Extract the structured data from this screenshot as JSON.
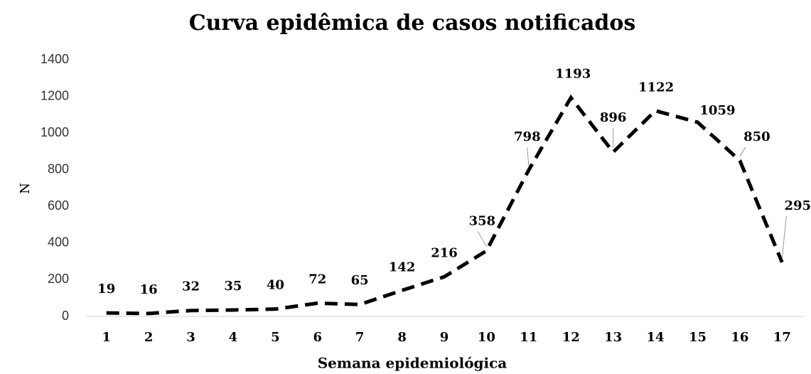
{
  "chart_data": {
    "type": "line",
    "title": "Curva epidêmica de casos notificados",
    "x_label": "Semana epidemiológica",
    "y_label": "N",
    "categories": [
      "1",
      "2",
      "3",
      "4",
      "5",
      "6",
      "7",
      "8",
      "9",
      "10",
      "11",
      "12",
      "13",
      "14",
      "15",
      "16",
      "17"
    ],
    "values": [
      19,
      16,
      32,
      35,
      40,
      72,
      65,
      142,
      216,
      358,
      798,
      1193,
      896,
      1122,
      1059,
      850,
      295
    ],
    "color": "#000000",
    "ylim": [
      0,
      1400
    ],
    "yticks": [
      0,
      200,
      400,
      600,
      800,
      1000,
      1200,
      1400
    ],
    "grid": false
  }
}
